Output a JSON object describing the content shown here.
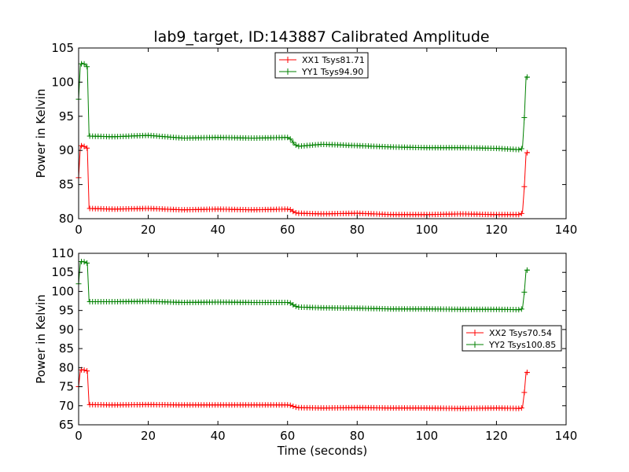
{
  "title": "lab9_target, ID:143887 Calibrated Amplitude",
  "colors": {
    "xx": "#ff0000",
    "yy": "#008000"
  },
  "chart_data": [
    {
      "type": "line",
      "ylabel": "Power in Kelvin",
      "xlabel": "",
      "xlim": [
        0,
        140
      ],
      "ylim": [
        80,
        105
      ],
      "xticks": [
        0,
        20,
        40,
        60,
        80,
        100,
        120,
        140
      ],
      "yticks": [
        80,
        85,
        90,
        95,
        100,
        105
      ],
      "legend_position": "top-center",
      "series": [
        {
          "name": "XX1 Tsys81.71",
          "color": "#ff0000",
          "marker": "+",
          "x": [
            0,
            0.5,
            1,
            1.5,
            2,
            2.5,
            3,
            10,
            20,
            30,
            40,
            50,
            60,
            61,
            62,
            63,
            70,
            80,
            90,
            100,
            110,
            120,
            127,
            127.5,
            128,
            128.5,
            129,
            129.5
          ],
          "y": [
            86,
            90.5,
            90.8,
            90.6,
            90.5,
            90.3,
            81.5,
            81.4,
            81.5,
            81.3,
            81.4,
            81.3,
            81.4,
            81.3,
            80.9,
            80.8,
            80.7,
            80.8,
            80.6,
            80.6,
            80.7,
            80.6,
            80.6,
            81,
            84.7,
            89.6,
            89.7,
            89.7
          ]
        },
        {
          "name": "YY1 Tsys94.90",
          "color": "#008000",
          "marker": "+",
          "x": [
            0,
            0.5,
            1,
            1.5,
            2,
            2.5,
            3,
            10,
            20,
            30,
            40,
            50,
            60,
            61,
            62,
            63,
            70,
            80,
            90,
            100,
            110,
            120,
            127,
            127.5,
            128,
            128.5,
            129,
            129.5
          ],
          "y": [
            97.5,
            102.5,
            102.8,
            102.7,
            102.5,
            102.2,
            92.1,
            92.0,
            92.2,
            91.8,
            91.9,
            91.8,
            91.9,
            91.6,
            90.9,
            90.6,
            90.9,
            90.7,
            90.5,
            90.4,
            90.4,
            90.3,
            90.1,
            90.5,
            94.8,
            100.8,
            100.7,
            100.7
          ]
        }
      ]
    },
    {
      "type": "line",
      "ylabel": "Power in Kelvin",
      "xlabel": "Time (seconds)",
      "xlim": [
        0,
        140
      ],
      "ylim": [
        65,
        110
      ],
      "xticks": [
        0,
        20,
        40,
        60,
        80,
        100,
        120,
        140
      ],
      "yticks": [
        65,
        70,
        75,
        80,
        85,
        90,
        95,
        100,
        105,
        110
      ],
      "legend_position": "center-right",
      "series": [
        {
          "name": "XX2 Tsys70.54",
          "color": "#ff0000",
          "marker": "+",
          "x": [
            0,
            0.5,
            1,
            1.5,
            2,
            2.5,
            3,
            10,
            20,
            30,
            40,
            50,
            60,
            61,
            62,
            63,
            70,
            80,
            90,
            100,
            110,
            120,
            127,
            127.5,
            128,
            128.5,
            129,
            129.5
          ],
          "y": [
            75,
            79.3,
            79.5,
            79.4,
            79.3,
            79.1,
            70.3,
            70.2,
            70.3,
            70.2,
            70.2,
            70.2,
            70.2,
            70.1,
            69.7,
            69.5,
            69.4,
            69.5,
            69.4,
            69.4,
            69.3,
            69.4,
            69.3,
            69.6,
            73.5,
            78.8,
            78.7,
            78.7
          ]
        },
        {
          "name": "YY2 Tsys100.85",
          "color": "#008000",
          "marker": "+",
          "x": [
            0,
            0.5,
            1,
            1.5,
            2,
            2.5,
            3,
            10,
            20,
            30,
            40,
            50,
            60,
            61,
            62,
            63,
            70,
            80,
            90,
            100,
            110,
            120,
            127,
            127.5,
            128,
            128.5,
            129,
            129.5
          ],
          "y": [
            102,
            107.7,
            107.9,
            107.8,
            107.6,
            107.4,
            97.3,
            97.3,
            97.4,
            97.1,
            97.2,
            97.1,
            97.1,
            96.9,
            96.2,
            95.9,
            95.7,
            95.6,
            95.4,
            95.4,
            95.3,
            95.3,
            95.2,
            95.6,
            99.8,
            105.6,
            105.6,
            105.6
          ]
        }
      ]
    }
  ]
}
